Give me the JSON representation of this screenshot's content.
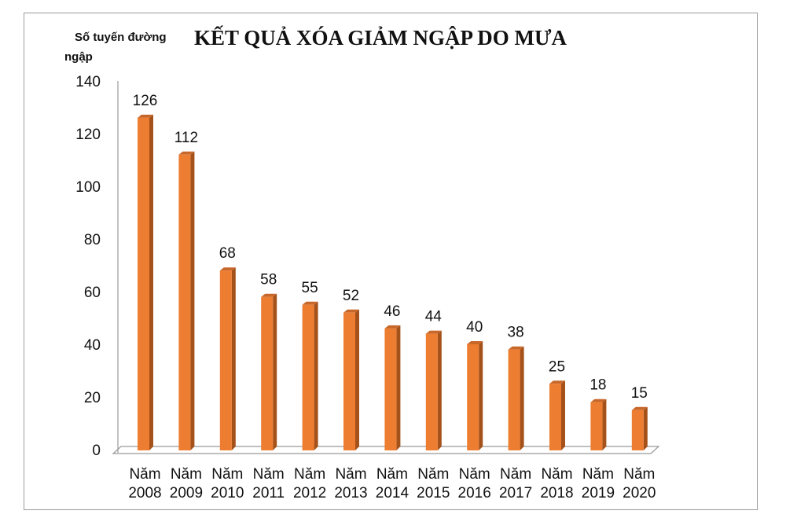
{
  "chart_data": {
    "type": "bar",
    "title": "KẾT QUẢ XÓA GIẢM NGẬP DO MƯA",
    "ylabel_lines": [
      "Số tuyến đường",
      "ngập"
    ],
    "xlabel": "",
    "categories": [
      [
        "Năm",
        "2008"
      ],
      [
        "Năm",
        "2009"
      ],
      [
        "Năm",
        "2010"
      ],
      [
        "Năm",
        "2011"
      ],
      [
        "Năm",
        "2012"
      ],
      [
        "Năm",
        "2013"
      ],
      [
        "Năm",
        "2014"
      ],
      [
        "Năm",
        "2015"
      ],
      [
        "Năm",
        "2016"
      ],
      [
        "Năm",
        "2017"
      ],
      [
        "Năm",
        "2018"
      ],
      [
        "Năm",
        "2019"
      ],
      [
        "Năm",
        "2020"
      ]
    ],
    "values": [
      126,
      112,
      68,
      58,
      55,
      52,
      46,
      44,
      40,
      38,
      25,
      18,
      15
    ],
    "ylim": [
      0,
      140
    ],
    "yticks": [
      0,
      20,
      40,
      60,
      80,
      100,
      120,
      140
    ],
    "grid": false,
    "legend": "none",
    "bar_color": "#ED7D31",
    "bar_side_color": "#A5511A"
  }
}
